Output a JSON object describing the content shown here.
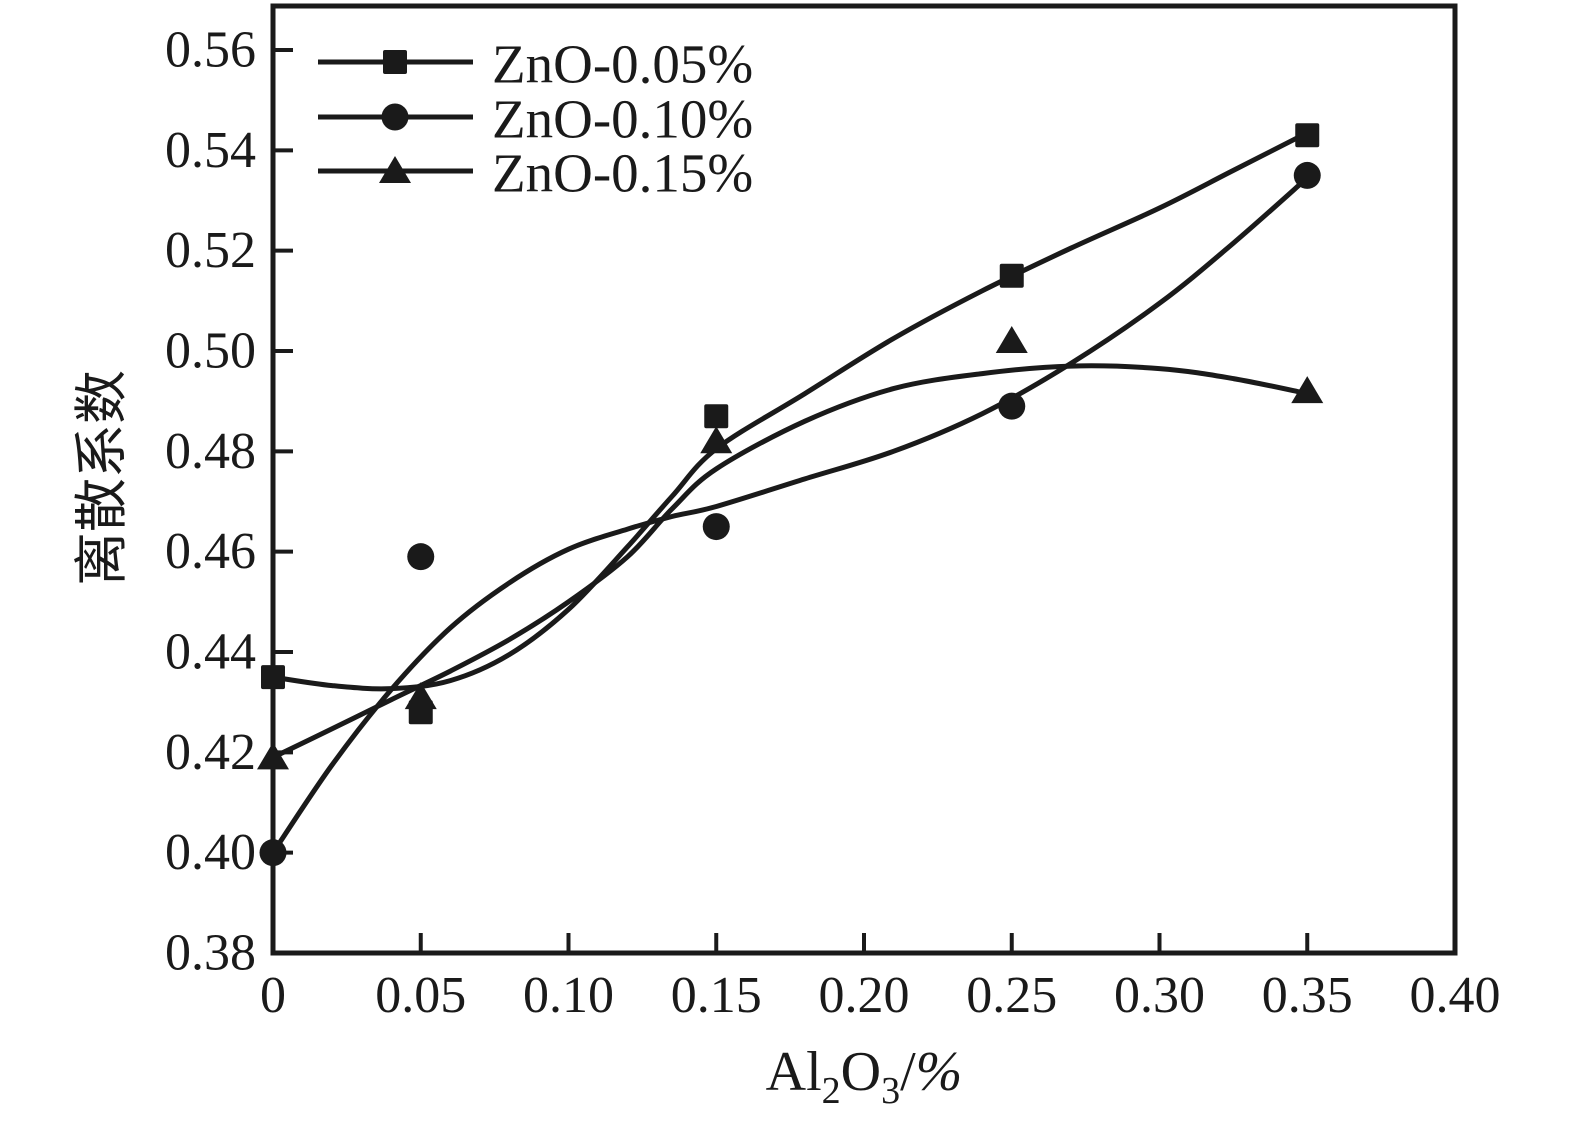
{
  "figure": {
    "background": "#ffffff",
    "ink_color": "#1a1a1a"
  },
  "chart_data": {
    "type": "line",
    "title": "",
    "xlabel": "Al2O3/%",
    "xlabel_parts": [
      {
        "t": "Al"
      },
      {
        "t": "2",
        "sub": true
      },
      {
        "t": "O"
      },
      {
        "t": "3",
        "sub": true
      },
      {
        "t": "/"
      },
      {
        "t": "%",
        "italic": true
      }
    ],
    "ylabel": "离散系数",
    "x_axis": {
      "min": 0,
      "max": 0.4,
      "tick_values": [
        0,
        0.05,
        0.1,
        0.15,
        0.2,
        0.25,
        0.3,
        0.35,
        0.4
      ],
      "tick_labels": [
        "0",
        "0.05",
        "0.10",
        "0.15",
        "0.20",
        "0.25",
        "0.30",
        "0.35",
        "0.40"
      ]
    },
    "y_axis": {
      "min": 0.38,
      "max": 0.56,
      "tick_values": [
        0.38,
        0.4,
        0.42,
        0.44,
        0.46,
        0.48,
        0.5,
        0.52,
        0.54,
        0.56
      ],
      "tick_labels": [
        "0.38",
        "0.40",
        "0.42",
        "0.44",
        "0.46",
        "0.48",
        "0.50",
        "0.52",
        "0.54",
        "0.56"
      ]
    },
    "legend": {
      "position": "top-left"
    },
    "grid": false,
    "series": [
      {
        "name": "ZnO-0.05%",
        "marker": "square",
        "color": "#1a1a1a",
        "points": [
          [
            0,
            0.435
          ],
          [
            0.05,
            0.428
          ],
          [
            0.15,
            0.487
          ],
          [
            0.25,
            0.515
          ],
          [
            0.35,
            0.543
          ]
        ],
        "fit_curve": [
          [
            0,
            0.435
          ],
          [
            0.02,
            0.4333
          ],
          [
            0.04,
            0.4327
          ],
          [
            0.06,
            0.4343
          ],
          [
            0.08,
            0.4395
          ],
          [
            0.1,
            0.4485
          ],
          [
            0.12,
            0.461
          ],
          [
            0.135,
            0.471
          ],
          [
            0.15,
            0.4805
          ],
          [
            0.18,
            0.4915
          ],
          [
            0.21,
            0.5025
          ],
          [
            0.24,
            0.512
          ],
          [
            0.27,
            0.5205
          ],
          [
            0.3,
            0.5285
          ],
          [
            0.325,
            0.536
          ],
          [
            0.35,
            0.5435
          ]
        ]
      },
      {
        "name": "ZnO-0.10%",
        "marker": "circle",
        "color": "#1a1a1a",
        "points": [
          [
            0,
            0.4
          ],
          [
            0.05,
            0.459
          ],
          [
            0.15,
            0.465
          ],
          [
            0.25,
            0.489
          ],
          [
            0.35,
            0.535
          ]
        ],
        "fit_curve": [
          [
            0,
            0.4
          ],
          [
            0.02,
            0.4175
          ],
          [
            0.04,
            0.4325
          ],
          [
            0.06,
            0.4448
          ],
          [
            0.08,
            0.4538
          ],
          [
            0.1,
            0.4605
          ],
          [
            0.12,
            0.4645
          ],
          [
            0.135,
            0.467
          ],
          [
            0.15,
            0.469
          ],
          [
            0.18,
            0.4745
          ],
          [
            0.21,
            0.48
          ],
          [
            0.24,
            0.4875
          ],
          [
            0.27,
            0.4975
          ],
          [
            0.3,
            0.5095
          ],
          [
            0.325,
            0.5215
          ],
          [
            0.35,
            0.5345
          ]
        ]
      },
      {
        "name": "ZnO-0.15%",
        "marker": "triangle",
        "color": "#1a1a1a",
        "points": [
          [
            0,
            0.419
          ],
          [
            0.05,
            0.431
          ],
          [
            0.15,
            0.482
          ],
          [
            0.25,
            0.502
          ],
          [
            0.35,
            0.492
          ]
        ],
        "fit_curve": [
          [
            0,
            0.419
          ],
          [
            0.02,
            0.4247
          ],
          [
            0.04,
            0.4305
          ],
          [
            0.06,
            0.4362
          ],
          [
            0.08,
            0.4425
          ],
          [
            0.1,
            0.45
          ],
          [
            0.12,
            0.459
          ],
          [
            0.135,
            0.4685
          ],
          [
            0.15,
            0.4765
          ],
          [
            0.18,
            0.486
          ],
          [
            0.21,
            0.4925
          ],
          [
            0.24,
            0.4955
          ],
          [
            0.27,
            0.497
          ],
          [
            0.3,
            0.4965
          ],
          [
            0.325,
            0.4945
          ],
          [
            0.35,
            0.4915
          ]
        ]
      }
    ]
  }
}
